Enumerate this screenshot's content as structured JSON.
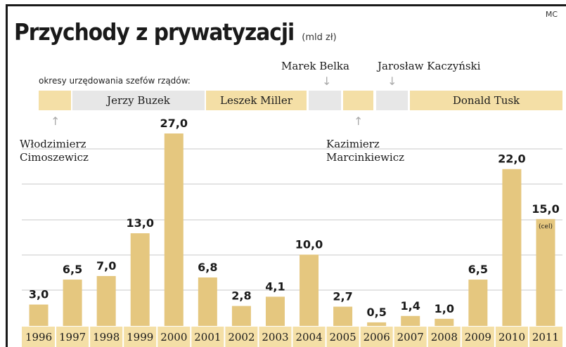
{
  "header": {
    "credit": "MC",
    "title": "Przychody z prywatyzacji",
    "unit": "(mld zł)"
  },
  "terms": {
    "caption": "okresy urzędowania szefów rządów:",
    "bar_labels": [
      "Jerzy Buzek",
      "Leszek Miller",
      "Donald Tusk"
    ],
    "callouts": {
      "cimoszewicz_line1": "Włodzimierz",
      "cimoszewicz_line2": "Cimoszewicz",
      "belka": "Marek Belka",
      "marcinkiewicz_line1": "Kazimierz",
      "marcinkiewicz_line2": "Marcinkiewicz",
      "kaczynski": "Jarosław Kaczyński"
    },
    "colors": {
      "beige": "#f4dfa6",
      "grey": "#e7e7e7"
    }
  },
  "chart_data": {
    "type": "bar",
    "title": "Przychody z prywatyzacji",
    "ylabel": "(mld zł)",
    "categories": [
      "1996",
      "1997",
      "1998",
      "1999",
      "2000",
      "2001",
      "2002",
      "2003",
      "2004",
      "2005",
      "2006",
      "2007",
      "2008",
      "2009",
      "2010",
      "2011"
    ],
    "values": [
      3.0,
      6.5,
      7.0,
      13.0,
      27.0,
      6.8,
      2.8,
      4.1,
      10.0,
      2.7,
      0.5,
      1.4,
      1.0,
      6.5,
      22.0,
      15.0
    ],
    "value_labels": [
      "3,0",
      "6,5",
      "7,0",
      "13,0",
      "27,0",
      "6,8",
      "2,8",
      "4,1",
      "10,0",
      "2,7",
      "0,5",
      "1,4",
      "1,0",
      "6,5",
      "22,0",
      "15,0"
    ],
    "annotations": [
      {
        "category": "2011",
        "text": "(cel)"
      }
    ],
    "ylim": [
      0,
      27
    ],
    "grid": true,
    "colors": {
      "bar": "#e5c77f",
      "axis_band": "#f4dfa6",
      "grid": "#c9c9c9"
    }
  }
}
